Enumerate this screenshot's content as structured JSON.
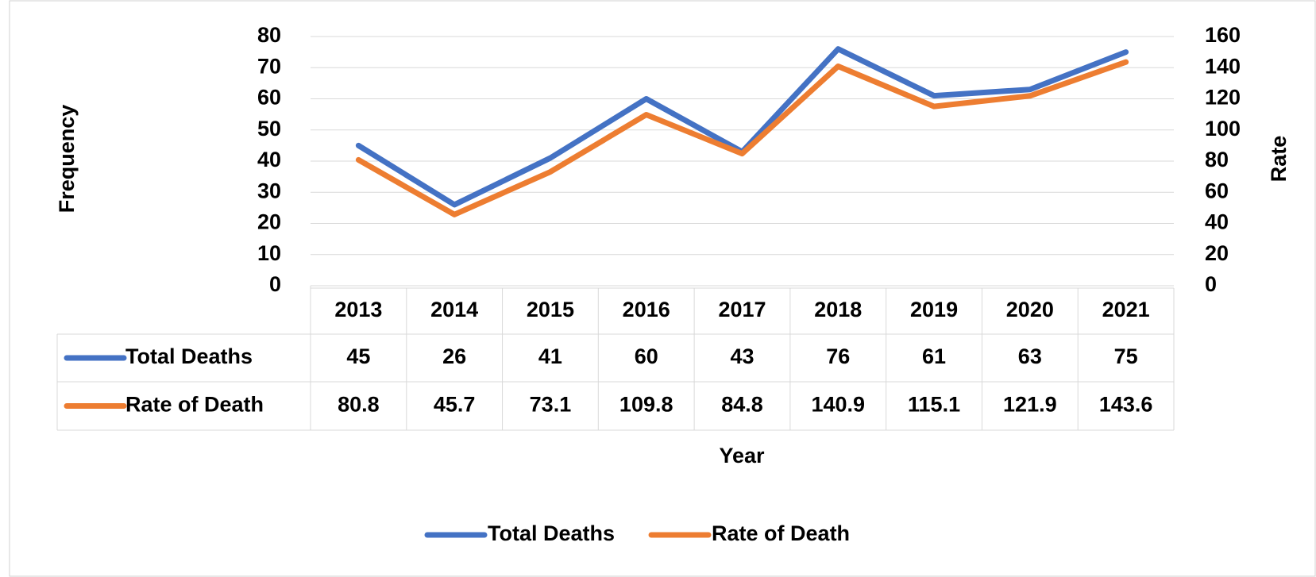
{
  "chart_data": {
    "type": "line",
    "categories": [
      "2013",
      "2014",
      "2015",
      "2016",
      "2017",
      "2018",
      "2019",
      "2020",
      "2021"
    ],
    "series": [
      {
        "name": "Total Deaths",
        "color": "#4472c4",
        "values": [
          45,
          26,
          41,
          60,
          43,
          76,
          61,
          63,
          75
        ]
      },
      {
        "name": "Rate of Death",
        "color": "#ed7d31",
        "axis": "y2",
        "values": [
          80.8,
          45.7,
          73.1,
          109.8,
          84.8,
          140.9,
          115.1,
          121.9,
          143.6
        ]
      }
    ],
    "ylabel": "Frequency",
    "y2label": "Rate",
    "xlabel": "Year",
    "ylim": [
      0,
      80
    ],
    "yticks": [
      0,
      10,
      20,
      30,
      40,
      50,
      60,
      70,
      80
    ],
    "y2lim": [
      0,
      160
    ],
    "y2ticks": [
      0,
      20,
      40,
      60,
      80,
      100,
      120,
      140,
      160
    ],
    "grid": true,
    "legend": "bottom"
  }
}
